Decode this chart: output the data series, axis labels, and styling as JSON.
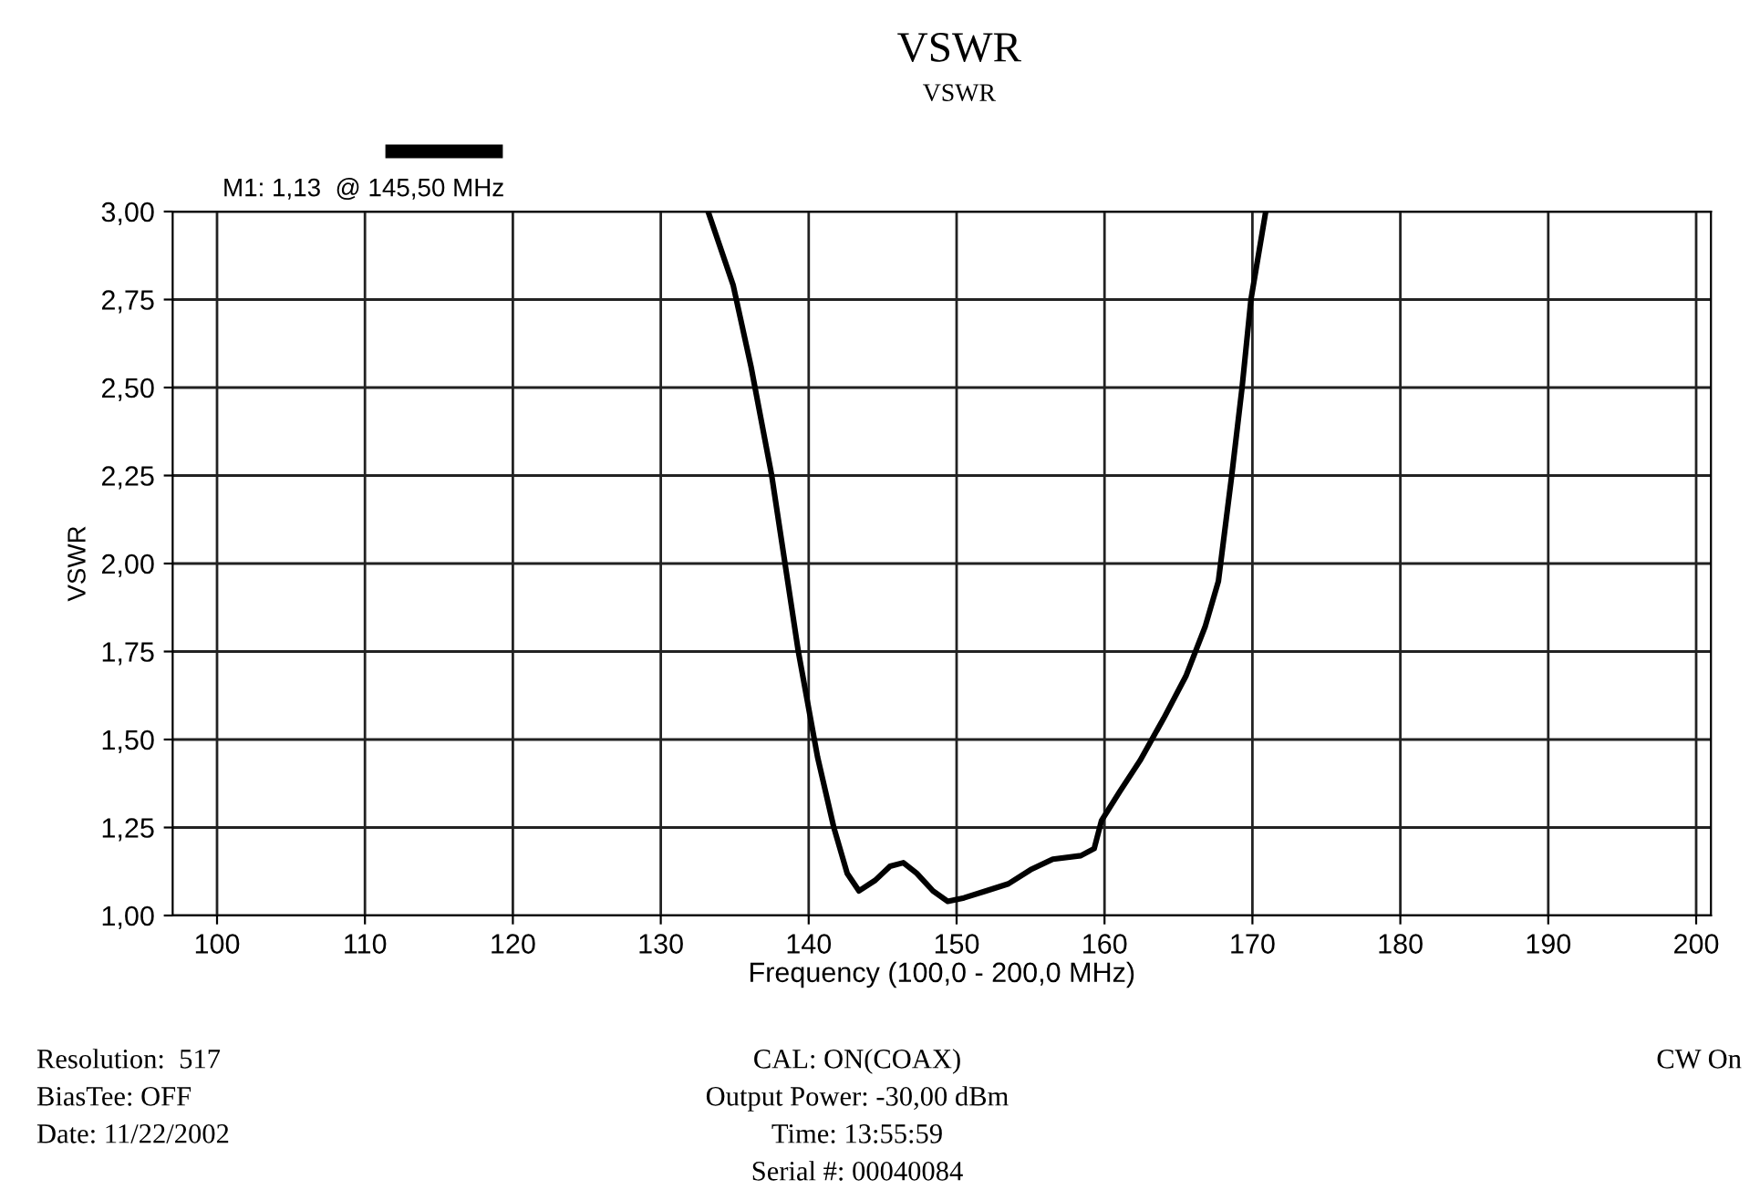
{
  "chart_data": {
    "type": "line",
    "title": "VSWR",
    "subtitle": "VSWR",
    "xlabel": "Frequency (100,0 - 200,0 MHz)",
    "ylabel": "VSWR",
    "series": [
      {
        "color": "#000000",
        "x": [
          133.2,
          134.9,
          136.1,
          137.5,
          139.3,
          140.6,
          141.7,
          142.6,
          143.4,
          144.5,
          145.5,
          146.4,
          147.3,
          148.4,
          149.4,
          150.5,
          152.0,
          153.5,
          155.0,
          156.5,
          158.4,
          159.3,
          159.8,
          161.0,
          162.4,
          164.0,
          165.5,
          166.8,
          167.7,
          168.6,
          169.3,
          169.9,
          170.9
        ],
        "values": [
          3.0,
          2.79,
          2.56,
          2.25,
          1.75,
          1.45,
          1.25,
          1.12,
          1.07,
          1.1,
          1.14,
          1.15,
          1.12,
          1.07,
          1.04,
          1.05,
          1.07,
          1.09,
          1.13,
          1.16,
          1.17,
          1.19,
          1.27,
          1.35,
          1.44,
          1.56,
          1.68,
          1.82,
          1.95,
          2.25,
          2.5,
          2.75,
          3.0
        ]
      }
    ],
    "xlim": [
      97,
      201
    ],
    "ylim": [
      1.0,
      3.0
    ],
    "xticks": [
      100,
      110,
      120,
      130,
      140,
      150,
      160,
      170,
      180,
      190,
      200
    ],
    "yticks": [
      {
        "value": 1.0,
        "label": "1,00"
      },
      {
        "value": 1.25,
        "label": "1,25"
      },
      {
        "value": 1.5,
        "label": "1,50"
      },
      {
        "value": 1.75,
        "label": "1,75"
      },
      {
        "value": 2.0,
        "label": "2,00"
      },
      {
        "value": 2.25,
        "label": "2,25"
      },
      {
        "value": 2.5,
        "label": "2,50"
      },
      {
        "value": 2.75,
        "label": "2,75"
      },
      {
        "value": 3.0,
        "label": "3,00"
      }
    ],
    "grid": true,
    "line_style": "solid",
    "marker": "none",
    "annotations": [
      "M1: 1,13  @ 145,50 MHz",
      "Resolution:  517",
      "BiasTee: OFF",
      "Date: 11/22/2002",
      "CAL: ON(COAX)",
      "Output Power: -30,00 dBm",
      "Time: 13:55:59",
      "Serial #: 00040084",
      "CW On"
    ]
  }
}
